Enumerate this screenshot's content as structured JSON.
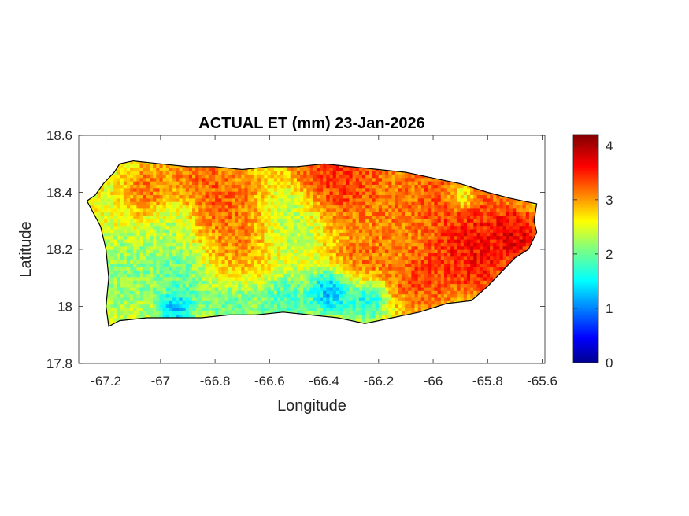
{
  "chart_data": {
    "type": "heatmap",
    "title": "ACTUAL ET (mm) 23-Jan-2026",
    "xlabel": "Longitude",
    "ylabel": "Latitude",
    "xlim": [
      -67.3,
      -65.59
    ],
    "ylim": [
      17.8,
      18.6
    ],
    "xticks": [
      -67.2,
      -67,
      -66.8,
      -66.6,
      -66.4,
      -66.2,
      -66,
      -65.8,
      -65.6
    ],
    "xtick_labels": [
      "-67.2",
      "-67",
      "-66.8",
      "-66.6",
      "-66.4",
      "-66.2",
      "-66",
      "-65.8",
      "-65.6"
    ],
    "yticks": [
      17.8,
      18,
      18.2,
      18.4,
      18.6
    ],
    "ytick_labels": [
      "17.8",
      "18",
      "18.2",
      "18.4",
      "18.6"
    ],
    "colormap": "jet",
    "colorbar": {
      "range": [
        0,
        4.2
      ],
      "ticks": [
        0,
        1,
        2,
        3,
        4
      ],
      "tick_labels": [
        "0",
        "1",
        "2",
        "3",
        "4"
      ]
    },
    "grid": false,
    "island_outline": [
      [
        -67.27,
        18.37
      ],
      [
        -67.24,
        18.39
      ],
      [
        -67.21,
        18.43
      ],
      [
        -67.17,
        18.47
      ],
      [
        -67.15,
        18.5
      ],
      [
        -67.1,
        18.51
      ],
      [
        -67.0,
        18.5
      ],
      [
        -66.9,
        18.49
      ],
      [
        -66.8,
        18.49
      ],
      [
        -66.7,
        18.48
      ],
      [
        -66.6,
        18.49
      ],
      [
        -66.5,
        18.49
      ],
      [
        -66.4,
        18.5
      ],
      [
        -66.3,
        18.49
      ],
      [
        -66.2,
        18.48
      ],
      [
        -66.1,
        18.47
      ],
      [
        -66.0,
        18.45
      ],
      [
        -65.9,
        18.43
      ],
      [
        -65.8,
        18.4
      ],
      [
        -65.72,
        18.38
      ],
      [
        -65.67,
        18.37
      ],
      [
        -65.62,
        18.36
      ],
      [
        -65.63,
        18.3
      ],
      [
        -65.62,
        18.26
      ],
      [
        -65.65,
        18.2
      ],
      [
        -65.7,
        18.17
      ],
      [
        -65.75,
        18.12
      ],
      [
        -65.8,
        18.07
      ],
      [
        -65.86,
        18.02
      ],
      [
        -65.95,
        18.01
      ],
      [
        -66.05,
        17.98
      ],
      [
        -66.15,
        17.96
      ],
      [
        -66.25,
        17.94
      ],
      [
        -66.35,
        17.96
      ],
      [
        -66.45,
        17.97
      ],
      [
        -66.55,
        17.98
      ],
      [
        -66.65,
        17.97
      ],
      [
        -66.75,
        17.97
      ],
      [
        -66.85,
        17.96
      ],
      [
        -66.95,
        17.96
      ],
      [
        -67.05,
        17.96
      ],
      [
        -67.15,
        17.95
      ],
      [
        -67.19,
        17.93
      ],
      [
        -67.2,
        18.0
      ],
      [
        -67.19,
        18.1
      ],
      [
        -67.2,
        18.2
      ],
      [
        -67.22,
        18.28
      ],
      [
        -67.27,
        18.37
      ]
    ],
    "et_features": [
      {
        "lon": -65.85,
        "lat": 18.2,
        "value": 4.0,
        "spread": 0.13
      },
      {
        "lon": -65.7,
        "lat": 18.25,
        "value": 4.1,
        "spread": 0.07
      },
      {
        "lon": -66.35,
        "lat": 18.47,
        "value": 3.8,
        "spread": 0.14
      },
      {
        "lon": -65.95,
        "lat": 18.4,
        "value": 3.6,
        "spread": 0.14
      },
      {
        "lon": -66.85,
        "lat": 18.4,
        "value": 3.5,
        "spread": 0.12
      },
      {
        "lon": -67.05,
        "lat": 18.4,
        "value": 3.4,
        "spread": 0.07
      },
      {
        "lon": -66.7,
        "lat": 18.3,
        "value": 3.4,
        "spread": 0.12
      },
      {
        "lon": -66.8,
        "lat": 18.18,
        "value": 3.2,
        "spread": 0.1
      },
      {
        "lon": -66.15,
        "lat": 18.35,
        "value": 3.3,
        "spread": 0.12
      },
      {
        "lon": -66.05,
        "lat": 18.1,
        "value": 3.6,
        "spread": 0.1
      },
      {
        "lon": -66.25,
        "lat": 18.15,
        "value": 3.4,
        "spread": 0.1
      },
      {
        "lon": -66.9,
        "lat": 18.12,
        "value": 1.6,
        "spread": 0.1
      },
      {
        "lon": -67.12,
        "lat": 18.1,
        "value": 2.0,
        "spread": 0.12
      },
      {
        "lon": -66.55,
        "lat": 18.3,
        "value": 2.0,
        "spread": 0.1
      },
      {
        "lon": -66.95,
        "lat": 18.3,
        "value": 2.1,
        "spread": 0.08
      },
      {
        "lon": -66.38,
        "lat": 18.05,
        "value": 0.8,
        "spread": 0.06
      },
      {
        "lon": -66.25,
        "lat": 18.03,
        "value": 1.0,
        "spread": 0.06
      },
      {
        "lon": -66.95,
        "lat": 17.99,
        "value": 0.9,
        "spread": 0.05
      },
      {
        "lon": -66.55,
        "lat": 18.0,
        "value": 1.6,
        "spread": 0.08
      },
      {
        "lon": -66.75,
        "lat": 18.0,
        "value": 1.8,
        "spread": 0.08
      },
      {
        "lon": -65.9,
        "lat": 18.38,
        "value": 1.6,
        "spread": 0.04
      }
    ],
    "et_background_value": 2.6
  }
}
